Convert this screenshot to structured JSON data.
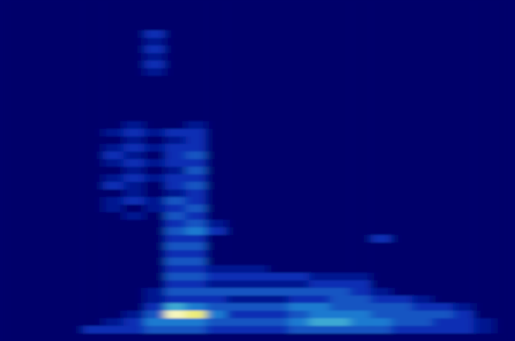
{
  "chart_data": {
    "type": "heatmap",
    "zlim": [
      0,
      10
    ],
    "tick_labels": false,
    "z": [
      [
        0,
        0,
        0,
        0,
        0,
        0,
        0,
        0,
        0,
        0,
        0,
        0,
        0,
        0,
        0,
        0,
        0,
        0,
        0,
        0,
        0,
        0,
        0,
        0,
        0
      ],
      [
        0,
        0,
        0,
        0,
        0,
        0,
        0,
        0,
        0,
        0,
        0,
        0,
        0,
        0,
        0,
        0,
        0,
        0,
        0,
        0,
        0,
        0,
        0,
        0,
        0
      ],
      [
        0,
        0,
        0,
        0,
        0,
        0,
        0,
        0,
        0,
        0,
        0,
        0,
        0,
        0,
        0,
        0,
        0,
        0,
        0,
        0,
        0,
        0,
        0,
        0,
        0
      ],
      [
        0,
        0,
        0,
        0,
        0,
        0,
        0,
        0,
        0,
        0,
        0,
        0,
        0,
        0,
        0,
        0,
        0,
        0,
        0,
        0,
        0,
        0,
        0,
        0,
        0
      ],
      [
        0,
        0,
        0,
        0,
        0,
        0,
        0,
        2,
        0,
        0,
        0,
        0,
        0,
        0,
        0,
        0,
        0,
        0,
        0,
        0,
        0,
        0,
        0,
        0,
        0
      ],
      [
        0,
        0,
        0,
        0,
        0,
        0,
        0,
        1,
        0,
        0,
        0,
        0,
        0,
        0,
        0,
        0,
        0,
        0,
        0,
        0,
        0,
        0,
        0,
        0,
        0
      ],
      [
        0,
        0,
        0,
        0,
        0,
        0,
        0,
        2,
        0,
        0,
        0,
        0,
        0,
        0,
        0,
        0,
        0,
        0,
        0,
        0,
        0,
        0,
        0,
        0,
        0
      ],
      [
        0,
        0,
        0,
        0,
        0,
        0,
        0,
        1,
        0,
        0,
        0,
        0,
        0,
        0,
        0,
        0,
        0,
        0,
        0,
        0,
        0,
        0,
        0,
        0,
        0
      ],
      [
        0,
        0,
        0,
        0,
        0,
        0,
        0,
        2,
        0,
        0,
        0,
        0,
        0,
        0,
        0,
        0,
        0,
        0,
        0,
        0,
        0,
        0,
        0,
        0,
        0
      ],
      [
        0,
        0,
        0,
        0,
        0,
        0,
        0,
        1,
        0,
        0,
        0,
        0,
        0,
        0,
        0,
        0,
        0,
        0,
        0,
        0,
        0,
        0,
        0,
        0,
        0
      ],
      [
        0,
        0,
        0,
        0,
        0,
        0,
        0,
        0,
        0,
        0,
        0,
        0,
        0,
        0,
        0,
        0,
        0,
        0,
        0,
        0,
        0,
        0,
        0,
        0,
        0
      ],
      [
        0,
        0,
        0,
        0,
        0,
        0,
        0,
        0,
        0,
        0,
        0,
        0,
        0,
        0,
        0,
        0,
        0,
        0,
        0,
        0,
        0,
        0,
        0,
        0,
        0
      ],
      [
        0,
        0,
        0,
        0,
        0,
        0,
        0,
        0,
        0,
        0,
        0,
        0,
        0,
        0,
        0,
        0,
        0,
        0,
        0,
        0,
        0,
        0,
        0,
        0,
        0
      ],
      [
        0,
        0,
        0,
        0,
        0,
        0,
        0,
        0,
        0,
        0,
        0,
        0,
        0,
        0,
        0,
        0,
        0,
        0,
        0,
        0,
        0,
        0,
        0,
        0,
        0
      ],
      [
        0,
        0,
        0,
        0,
        0,
        0,
        0,
        0,
        0,
        0,
        0,
        0,
        0,
        0,
        0,
        0,
        0,
        0,
        0,
        0,
        0,
        0,
        0,
        0,
        0
      ],
      [
        0,
        0,
        0,
        0,
        0,
        0,
        0,
        0,
        0,
        0,
        0,
        0,
        0,
        0,
        0,
        0,
        0,
        0,
        0,
        0,
        0,
        0,
        0,
        0,
        0
      ],
      [
        0,
        0,
        0,
        0,
        0,
        0,
        1,
        0,
        0,
        1,
        0,
        0,
        0,
        0,
        0,
        0,
        0,
        0,
        0,
        0,
        0,
        0,
        0,
        0,
        0
      ],
      [
        0,
        0,
        0,
        0,
        0,
        1,
        2,
        1,
        2,
        2,
        0,
        0,
        0,
        0,
        0,
        0,
        0,
        0,
        0,
        0,
        0,
        0,
        0,
        0,
        0
      ],
      [
        0,
        0,
        0,
        0,
        0,
        0,
        1,
        0,
        1,
        2,
        0,
        0,
        0,
        0,
        0,
        0,
        0,
        0,
        0,
        0,
        0,
        0,
        0,
        0,
        0
      ],
      [
        0,
        0,
        0,
        0,
        0,
        1,
        2,
        1,
        2,
        2,
        0,
        0,
        0,
        0,
        0,
        0,
        0,
        0,
        0,
        0,
        0,
        0,
        0,
        0,
        0
      ],
      [
        0,
        0,
        0,
        0,
        0,
        2,
        1,
        0,
        2,
        3,
        0,
        0,
        0,
        0,
        0,
        0,
        0,
        0,
        0,
        0,
        0,
        0,
        0,
        0,
        0
      ],
      [
        0,
        0,
        0,
        0,
        0,
        1,
        2,
        1,
        2,
        2,
        0,
        0,
        0,
        0,
        0,
        0,
        0,
        0,
        0,
        0,
        0,
        0,
        0,
        0,
        0
      ],
      [
        0,
        0,
        0,
        0,
        0,
        0,
        1,
        0,
        1,
        3,
        0,
        0,
        0,
        0,
        0,
        0,
        0,
        0,
        0,
        0,
        0,
        0,
        0,
        0,
        0
      ],
      [
        0,
        0,
        0,
        0,
        0,
        1,
        2,
        1,
        2,
        2,
        0,
        0,
        0,
        0,
        0,
        0,
        0,
        0,
        0,
        0,
        0,
        0,
        0,
        0,
        0
      ],
      [
        0,
        0,
        0,
        0,
        0,
        2,
        1,
        0,
        2,
        3,
        0,
        0,
        0,
        0,
        0,
        0,
        0,
        0,
        0,
        0,
        0,
        0,
        0,
        0,
        0
      ],
      [
        0,
        0,
        0,
        0,
        0,
        0,
        1,
        0,
        1,
        2,
        0,
        0,
        0,
        0,
        0,
        0,
        0,
        0,
        0,
        0,
        0,
        0,
        0,
        0,
        0
      ],
      [
        0,
        0,
        0,
        0,
        0,
        1,
        2,
        1,
        3,
        2,
        0,
        0,
        0,
        0,
        0,
        0,
        0,
        0,
        0,
        0,
        0,
        0,
        0,
        0,
        0
      ],
      [
        0,
        0,
        0,
        0,
        0,
        1,
        0,
        1,
        2,
        3,
        0,
        0,
        0,
        0,
        0,
        0,
        0,
        0,
        0,
        0,
        0,
        0,
        0,
        0,
        0
      ],
      [
        0,
        0,
        0,
        0,
        0,
        0,
        1,
        0,
        3,
        2,
        0,
        0,
        0,
        0,
        0,
        0,
        0,
        0,
        0,
        0,
        0,
        0,
        0,
        0,
        0
      ],
      [
        0,
        0,
        0,
        0,
        0,
        0,
        0,
        0,
        2,
        3,
        1,
        0,
        0,
        0,
        0,
        0,
        0,
        0,
        0,
        0,
        0,
        0,
        0,
        0,
        0
      ],
      [
        0,
        0,
        0,
        0,
        0,
        0,
        0,
        0,
        3,
        4,
        2,
        0,
        0,
        0,
        0,
        0,
        0,
        0,
        0,
        0,
        0,
        0,
        0,
        0,
        0
      ],
      [
        0,
        0,
        0,
        0,
        0,
        0,
        0,
        0,
        2,
        2,
        0,
        0,
        0,
        0,
        0,
        0,
        0,
        0,
        2,
        0,
        0,
        0,
        0,
        0,
        0
      ],
      [
        0,
        0,
        0,
        0,
        0,
        0,
        0,
        0,
        3,
        3,
        0,
        0,
        0,
        0,
        0,
        0,
        0,
        0,
        0,
        0,
        0,
        0,
        0,
        0,
        0
      ],
      [
        0,
        0,
        0,
        0,
        0,
        0,
        0,
        0,
        2,
        2,
        0,
        0,
        0,
        0,
        0,
        0,
        0,
        0,
        0,
        0,
        0,
        0,
        0,
        0,
        0
      ],
      [
        0,
        0,
        0,
        0,
        0,
        0,
        0,
        0,
        3,
        3,
        0,
        0,
        0,
        0,
        0,
        0,
        0,
        0,
        0,
        0,
        0,
        0,
        0,
        0,
        0
      ],
      [
        0,
        0,
        0,
        0,
        0,
        0,
        0,
        0,
        2,
        2,
        1,
        1,
        1,
        0,
        0,
        0,
        0,
        0,
        0,
        0,
        0,
        0,
        0,
        0,
        0
      ],
      [
        0,
        0,
        0,
        0,
        0,
        0,
        0,
        0,
        3,
        3,
        2,
        2,
        2,
        2,
        2,
        1,
        1,
        1,
        0,
        0,
        0,
        0,
        0,
        0,
        0
      ],
      [
        0,
        0,
        0,
        0,
        0,
        0,
        0,
        0,
        2,
        2,
        1,
        1,
        1,
        1,
        1,
        2,
        2,
        2,
        0,
        0,
        0,
        0,
        0,
        0,
        0
      ],
      [
        0,
        0,
        0,
        0,
        0,
        0,
        0,
        1,
        3,
        3,
        3,
        3,
        3,
        3,
        3,
        3,
        3,
        2,
        1,
        0,
        0,
        0,
        0,
        0,
        0
      ],
      [
        0,
        0,
        0,
        0,
        0,
        0,
        0,
        1,
        2,
        2,
        2,
        1,
        1,
        1,
        2,
        2,
        3,
        3,
        2,
        2,
        1,
        0,
        0,
        0,
        0
      ],
      [
        0,
        0,
        0,
        0,
        0,
        0,
        0,
        2,
        5,
        4,
        3,
        3,
        3,
        3,
        4,
        4,
        3,
        3,
        3,
        3,
        2,
        2,
        1,
        0,
        0
      ],
      [
        0,
        0,
        0,
        0,
        0,
        0,
        1,
        3,
        9,
        8,
        4,
        2,
        2,
        2,
        3,
        4,
        4,
        4,
        3,
        3,
        3,
        3,
        2,
        0,
        0
      ],
      [
        0,
        0,
        0,
        0,
        0,
        1,
        2,
        4,
        4,
        4,
        3,
        3,
        3,
        3,
        4,
        5,
        5,
        4,
        4,
        3,
        3,
        2,
        2,
        1,
        0
      ],
      [
        0,
        0,
        0,
        0,
        2,
        2,
        2,
        3,
        3,
        3,
        2,
        2,
        2,
        2,
        3,
        3,
        3,
        3,
        3,
        2,
        2,
        2,
        2,
        1,
        0
      ],
      [
        0,
        0,
        0,
        0,
        0,
        0,
        0,
        0,
        0,
        0,
        0,
        0,
        0,
        0,
        0,
        0,
        0,
        0,
        0,
        0,
        0,
        0,
        0,
        0,
        0
      ]
    ]
  }
}
